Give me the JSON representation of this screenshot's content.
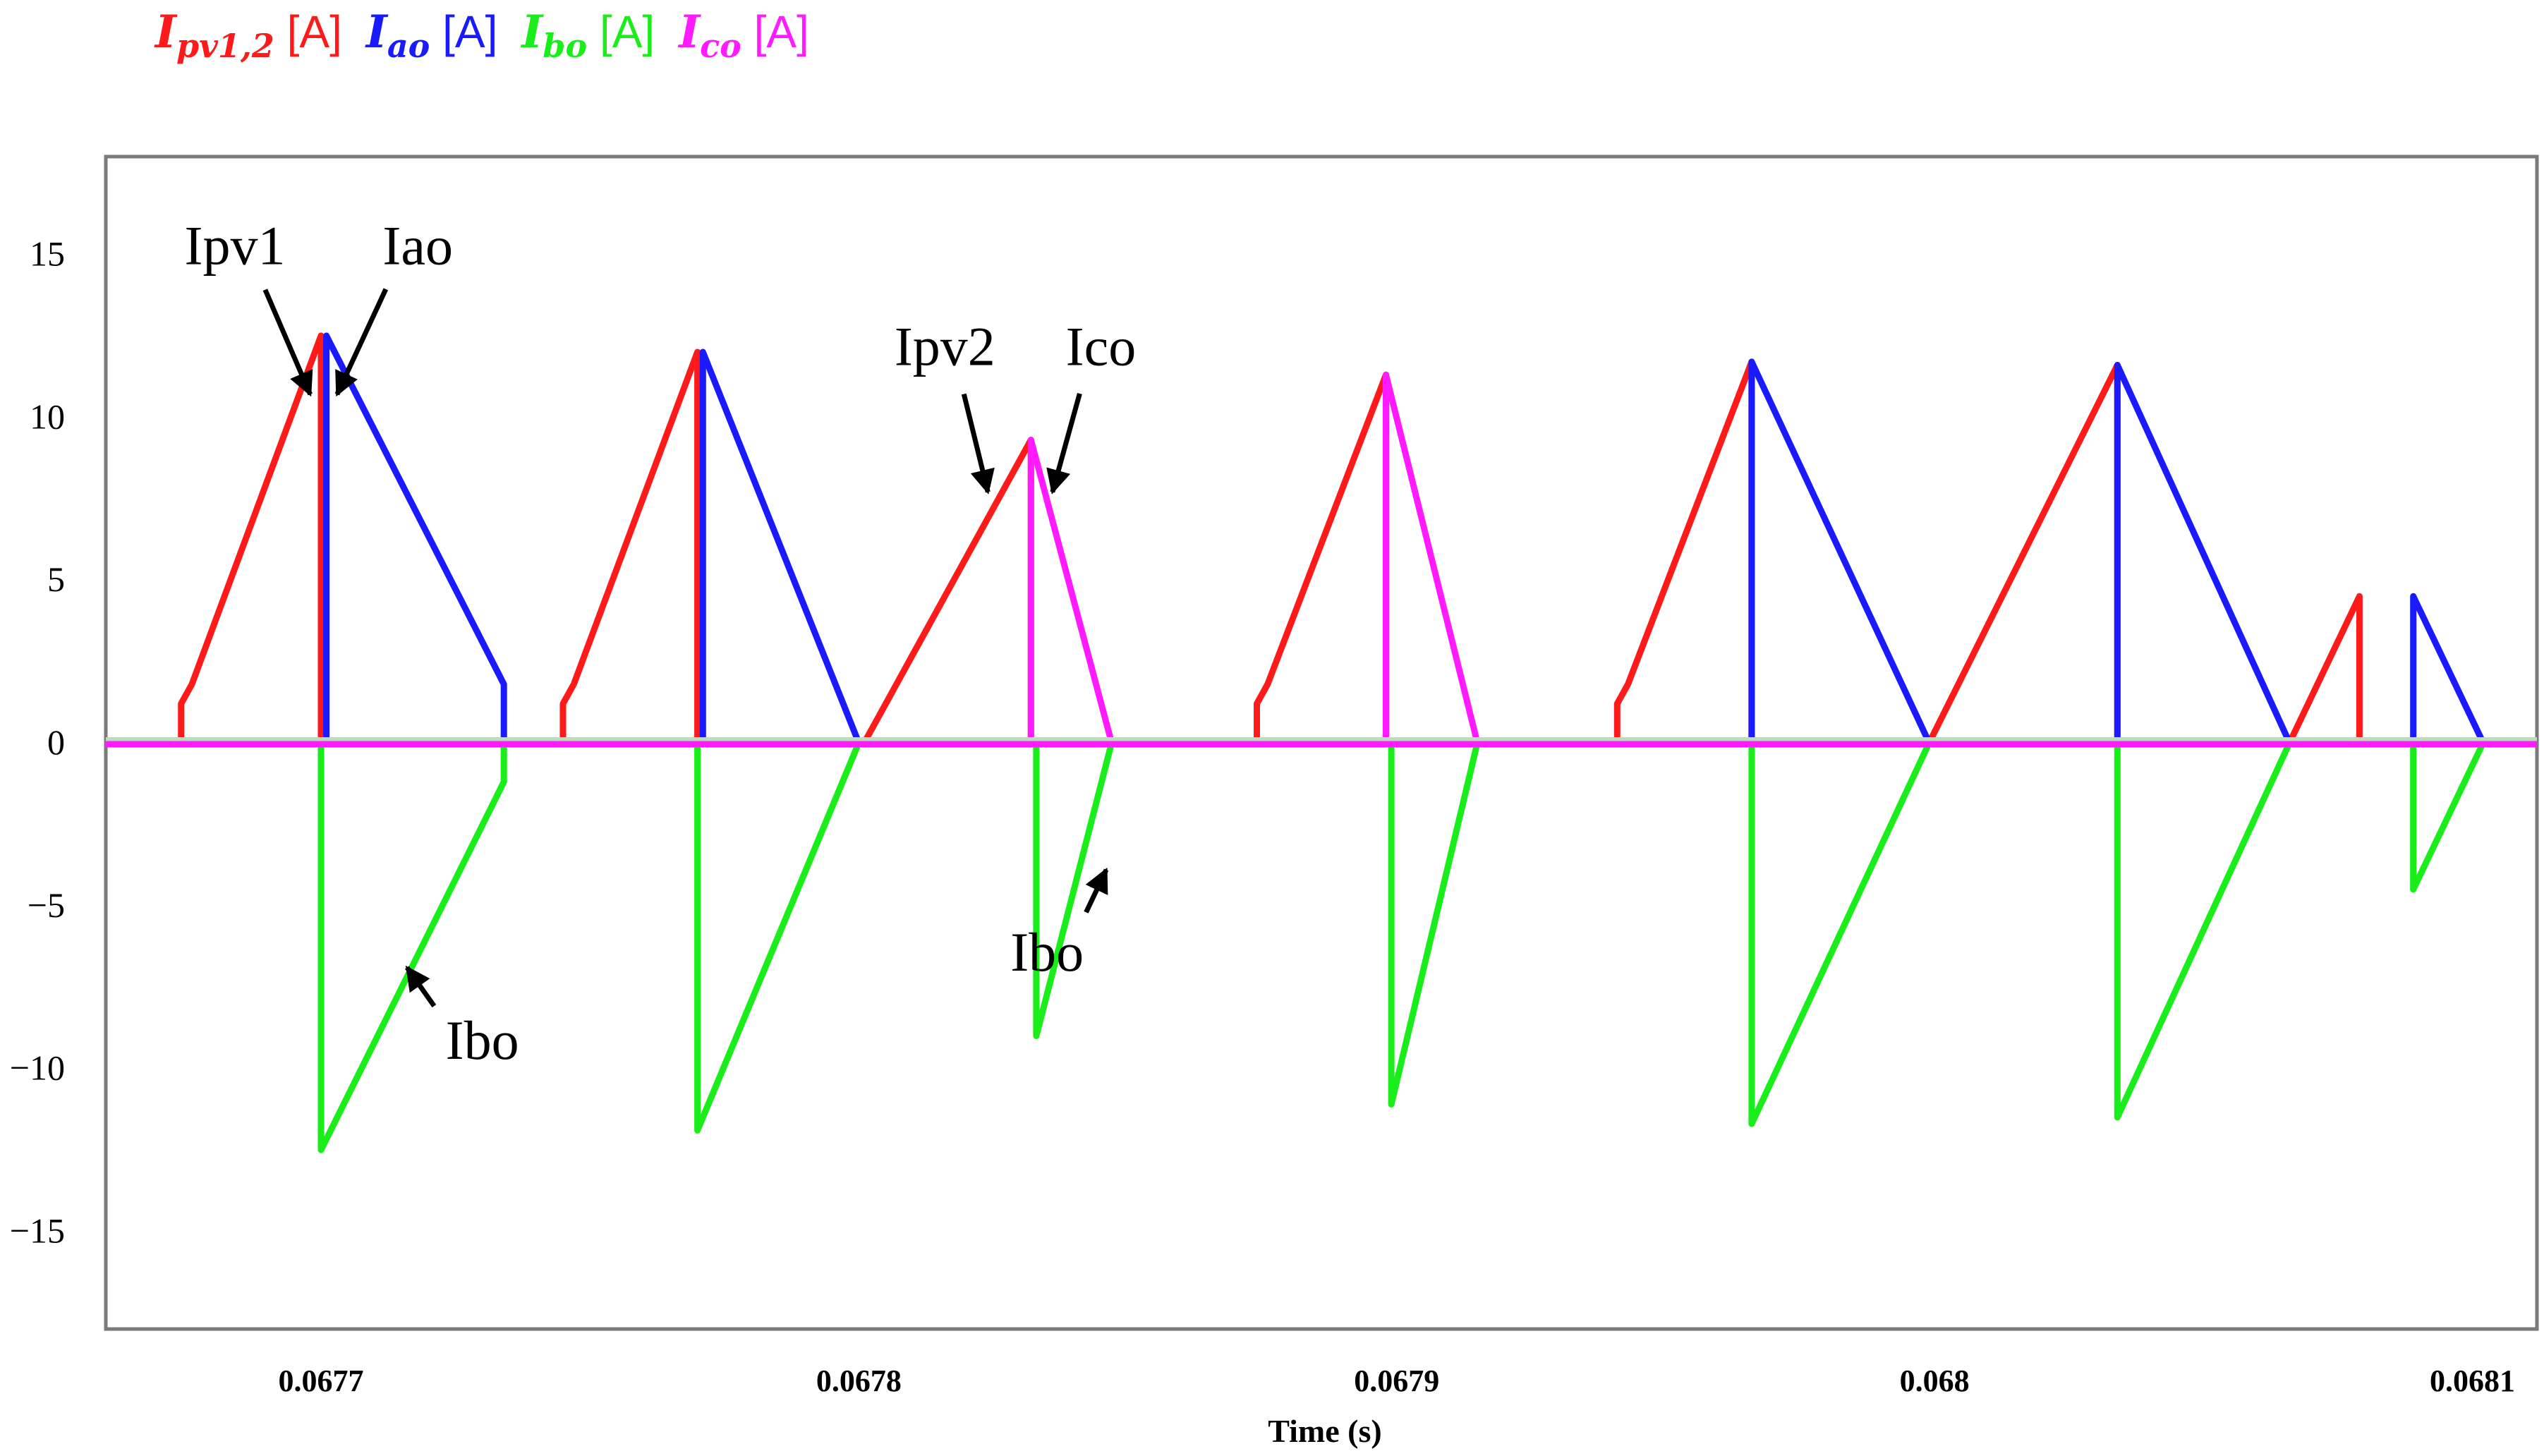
{
  "legend": [
    {
      "symbol": "I",
      "sub": "pv1,2",
      "unit": "[A]",
      "color": "#ff1a1a"
    },
    {
      "symbol": "I",
      "sub": "ao",
      "unit": "[A]",
      "color": "#1a1aff"
    },
    {
      "symbol": "I",
      "sub": "bo",
      "unit": "[A]",
      "color": "#1aee1a"
    },
    {
      "symbol": "I",
      "sub": "co",
      "unit": "[A]",
      "color": "#ff1aff"
    }
  ],
  "chart_data": {
    "type": "line",
    "xlabel": "Time (s)",
    "ylabel": "",
    "xlim": [
      0.06766,
      0.068112
    ],
    "ylim": [
      -18,
      18
    ],
    "xticks": [
      0.0677,
      0.0678,
      0.0679,
      0.068,
      0.0681
    ],
    "xtick_labels": [
      "0.0677",
      "0.0678",
      "0.0679",
      "0.068",
      "0.0681"
    ],
    "yticks": [
      15,
      10,
      5,
      0,
      -5,
      -10,
      -15
    ],
    "ytick_labels": [
      "15",
      "10",
      "5",
      "0",
      "−5",
      "−10",
      "−15"
    ],
    "grid": false,
    "series": [
      {
        "key": "ipv",
        "color": "#ff1a1a",
        "segments": [
          {
            "x": [
              0.067674,
              0.067674,
              0.067676,
              0.0677,
              0.0677,
              0.0677
            ],
            "y": [
              0,
              1.2,
              1.8,
              12.5,
              0,
              0
            ]
          },
          {
            "x": [
              0.067745,
              0.067745,
              0.067747,
              0.06777,
              0.06777,
              0.06777
            ],
            "y": [
              0,
              1.2,
              1.8,
              12,
              0,
              0
            ]
          },
          {
            "x": [
              0.067801,
              0.067832,
              0.067832
            ],
            "y": [
              0,
              9.3,
              0
            ]
          },
          {
            "x": [
              0.067874,
              0.067874,
              0.067876,
              0.067898,
              0.067898
            ],
            "y": [
              0,
              1.2,
              1.8,
              11.3,
              0
            ]
          },
          {
            "x": [
              0.067941,
              0.067941,
              0.067943,
              0.067966,
              0.067966
            ],
            "y": [
              0,
              1.2,
              1.8,
              11.7,
              0
            ]
          },
          {
            "x": [
              0.067999,
              0.068034,
              0.068034
            ],
            "y": [
              0,
              11.6,
              0
            ]
          },
          {
            "x": [
              0.068066,
              0.068079,
              0.068079
            ],
            "y": [
              0,
              4.5,
              0
            ]
          }
        ]
      },
      {
        "key": "iao",
        "color": "#1a1aff",
        "segments": [
          {
            "x": [
              0.067701,
              0.067701,
              0.067734,
              0.067734,
              0.067734
            ],
            "y": [
              0,
              12.5,
              1.8,
              1.2,
              0
            ]
          },
          {
            "x": [
              0.067771,
              0.067771,
              0.0678
            ],
            "y": [
              0,
              12,
              0
            ]
          },
          {
            "x": [
              0.067832,
              0.067847
            ],
            "y": [
              0,
              0
            ]
          },
          {
            "x": [
              0.067898,
              0.067915
            ],
            "y": [
              0,
              0
            ]
          },
          {
            "x": [
              0.067966,
              0.067966,
              0.067999
            ],
            "y": [
              0,
              11.7,
              0
            ]
          },
          {
            "x": [
              0.068034,
              0.068034,
              0.068066
            ],
            "y": [
              0,
              11.6,
              0
            ]
          },
          {
            "x": [
              0.068089,
              0.068089,
              0.068102
            ],
            "y": [
              0,
              4.5,
              0
            ]
          }
        ]
      },
      {
        "key": "ibo",
        "color": "#1aee1a",
        "segments": [
          {
            "x": [
              0.0677,
              0.0677,
              0.067734,
              0.067734
            ],
            "y": [
              0,
              -12.5,
              -1.2,
              0
            ]
          },
          {
            "x": [
              0.06777,
              0.06777,
              0.0678
            ],
            "y": [
              0,
              -11.9,
              0
            ]
          },
          {
            "x": [
              0.067833,
              0.067833,
              0.067847
            ],
            "y": [
              0,
              -9,
              0
            ]
          },
          {
            "x": [
              0.067899,
              0.067899,
              0.067915
            ],
            "y": [
              0,
              -11.1,
              0
            ]
          },
          {
            "x": [
              0.067966,
              0.067966,
              0.067999
            ],
            "y": [
              0,
              -11.7,
              0
            ]
          },
          {
            "x": [
              0.068034,
              0.068034,
              0.068066
            ],
            "y": [
              0,
              -11.5,
              0
            ]
          },
          {
            "x": [
              0.068089,
              0.068089,
              0.068102
            ],
            "y": [
              0,
              -4.5,
              0
            ]
          }
        ]
      },
      {
        "key": "ico",
        "color": "#ff1aff",
        "segments": [
          {
            "x": [
              0.067832,
              0.067832,
              0.067847
            ],
            "y": [
              0,
              9.3,
              0
            ]
          },
          {
            "x": [
              0.067898,
              0.067898,
              0.067915
            ],
            "y": [
              0,
              11.3,
              0
            ]
          }
        ]
      }
    ],
    "zero_baseline": {
      "x": [
        0.06766,
        0.068112
      ],
      "colors": [
        "#b8e0b8",
        "#ff1aff"
      ]
    },
    "annotations": [
      {
        "text": "Ipv1",
        "value": [
          0.067684,
          14.7
        ],
        "tip": [
          0.067698,
          10.7
        ]
      },
      {
        "text": "Iao",
        "value": [
          0.067718,
          14.7
        ],
        "tip": [
          0.067703,
          10.7
        ]
      },
      {
        "text": "Ipv2",
        "value": [
          0.067816,
          11.6
        ],
        "tip": [
          0.067824,
          7.7
        ]
      },
      {
        "text": "Ico",
        "value": [
          0.067845,
          11.6
        ],
        "tip": [
          0.067836,
          7.7
        ]
      },
      {
        "text": "Ibo",
        "value": [
          0.067835,
          -7
        ],
        "tip": [
          0.067846,
          -3.9
        ]
      },
      {
        "text": "Ibo",
        "value": [
          0.06773,
          -9.7
        ],
        "tip": [
          0.067716,
          -6.9
        ]
      }
    ]
  }
}
